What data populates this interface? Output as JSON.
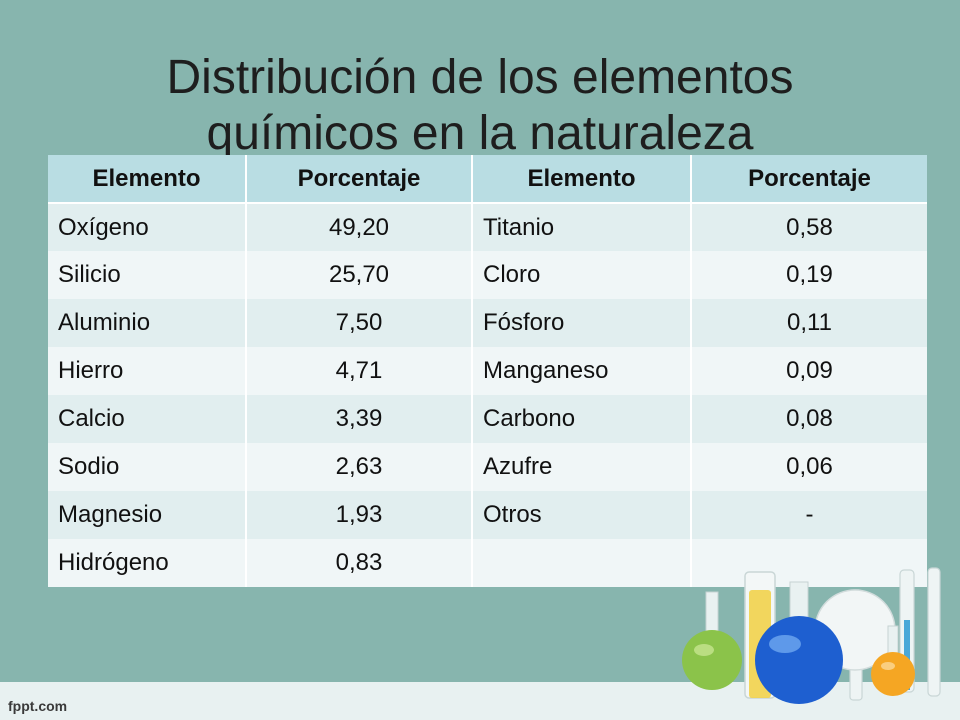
{
  "slide": {
    "title_line1": "Distribución de los elementos",
    "title_line2": "químicos en la naturaleza"
  },
  "table": {
    "headers": [
      "Elemento",
      "Porcentaje",
      "Elemento",
      "Porcentaje"
    ],
    "rows": [
      [
        "Oxígeno",
        "49,20",
        "Titanio",
        "0,58"
      ],
      [
        "Silicio",
        "25,70",
        "Cloro",
        "0,19"
      ],
      [
        "Aluminio",
        "7,50",
        "Fósforo",
        "0,11"
      ],
      [
        "Hierro",
        "4,71",
        "Manganeso",
        "0,09"
      ],
      [
        "Calcio",
        "3,39",
        "Carbono",
        "0,08"
      ],
      [
        "Sodio",
        "2,63",
        "Azufre",
        "0,06"
      ],
      [
        "Magnesio",
        "1,93",
        "Otros",
        "-"
      ],
      [
        "Hidrógeno",
        "0,83",
        "",
        ""
      ]
    ]
  },
  "footer": {
    "brand": "fppt.com"
  },
  "decoration": {
    "icon": "lab-glassware-icon",
    "colors": {
      "background": "#87b5ae",
      "header": "#b9dde3",
      "flask_blue": "#1e5fd0",
      "flask_green": "#8bc34a",
      "flask_orange": "#f5a623",
      "tube_yellow": "#f2d24b"
    }
  }
}
